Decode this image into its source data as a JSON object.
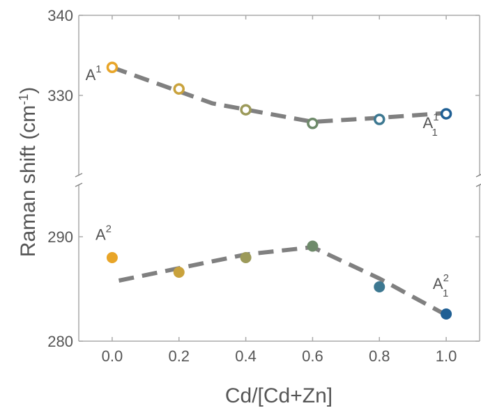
{
  "chart_data": {
    "type": "scatter",
    "xlabel": "Cd/[Cd+Zn]",
    "ylabel": "Raman shift (cm",
    "ylabel_sup": "-1",
    "ylabel_close": ")",
    "x": [
      0.0,
      0.2,
      0.4,
      0.6,
      0.8,
      1.0
    ],
    "xlim": [
      -0.1,
      1.1
    ],
    "x_ticks": [
      "0.0",
      "0.2",
      "0.4",
      "0.6",
      "0.8",
      "1.0"
    ],
    "grid": false,
    "broken_y_axis": true,
    "point_colors": [
      "#e8a528",
      "#c9a23c",
      "#9c9a5a",
      "#6e8a6a",
      "#3d7891",
      "#1f5f94"
    ],
    "fit_line_color": "#808080",
    "panels": [
      {
        "name": "upper",
        "ylim": [
          320,
          340
        ],
        "y_ticks": [
          "340",
          "330"
        ],
        "marker": "open-circle",
        "values": [
          333.5,
          330.8,
          328.2,
          326.5,
          327.0,
          327.7
        ],
        "fit_line": {
          "x": [
            0.0,
            0.3,
            0.6,
            0.8,
            1.0
          ],
          "y": [
            333.5,
            329.0,
            326.7,
            327.2,
            327.8
          ]
        },
        "annotations": [
          {
            "base": "A",
            "sup": "1",
            "sub": "",
            "x": -0.08,
            "y": 331.9
          },
          {
            "base": "A",
            "sup": "1",
            "sub": "1",
            "x": 0.93,
            "y": 325.9
          }
        ]
      },
      {
        "name": "lower",
        "ylim": [
          280,
          295
        ],
        "y_ticks": [
          "290",
          "280"
        ],
        "marker": "filled-circle",
        "values": [
          288.0,
          286.6,
          288.0,
          289.1,
          285.2,
          282.6
        ],
        "fit_line": {
          "x": [
            0.02,
            0.4,
            0.6,
            0.8,
            1.0
          ],
          "y": [
            285.8,
            288.3,
            289.0,
            286.0,
            282.5
          ]
        },
        "annotations": [
          {
            "base": "A",
            "sup": "2",
            "sub": "",
            "x": -0.05,
            "y": 289.7
          },
          {
            "base": "A",
            "sup": "2",
            "sub": "1",
            "x": 0.96,
            "y": 285.0
          }
        ]
      }
    ]
  }
}
